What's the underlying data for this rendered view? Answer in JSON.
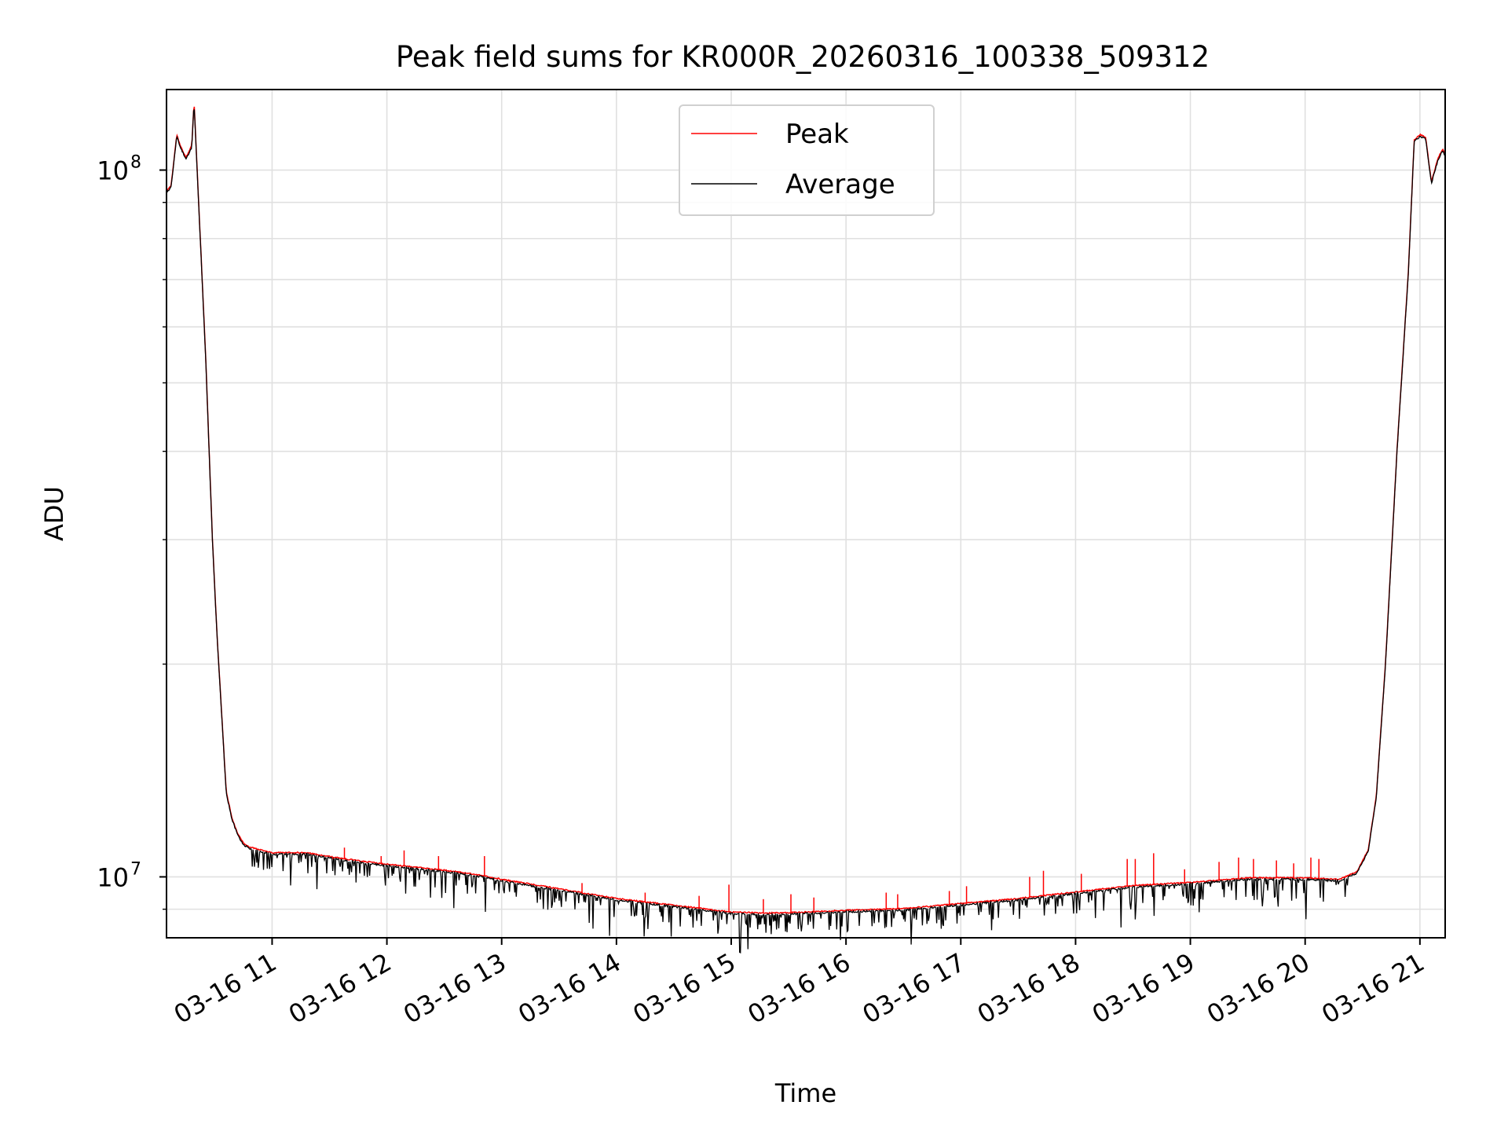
{
  "chart_data": {
    "type": "line",
    "title": "Peak field sums for KR000R_20260316_100338_509312",
    "xlabel": "Time",
    "ylabel": "ADU",
    "yscale": "log",
    "ylim": [
      8200000,
      130000000
    ],
    "xlim": [
      10.08,
      21.22
    ],
    "grid": true,
    "legend_position": "top-center",
    "x_ticks": [
      {
        "value": 11,
        "label": "03-16 11"
      },
      {
        "value": 12,
        "label": "03-16 12"
      },
      {
        "value": 13,
        "label": "03-16 13"
      },
      {
        "value": 14,
        "label": "03-16 14"
      },
      {
        "value": 15,
        "label": "03-16 15"
      },
      {
        "value": 16,
        "label": "03-16 16"
      },
      {
        "value": 17,
        "label": "03-16 17"
      },
      {
        "value": 18,
        "label": "03-16 18"
      },
      {
        "value": 19,
        "label": "03-16 19"
      },
      {
        "value": 20,
        "label": "03-16 20"
      },
      {
        "value": 21,
        "label": "03-16 21"
      }
    ],
    "y_ticks": [
      {
        "value": 10000000,
        "base": "10",
        "exp": "7"
      },
      {
        "value": 100000000,
        "base": "10",
        "exp": "8"
      }
    ],
    "baseline": {
      "x": [
        10.08,
        10.12,
        10.17,
        10.2,
        10.25,
        10.3,
        10.32,
        10.36,
        10.42,
        10.48,
        10.52,
        10.57,
        10.6,
        10.65,
        10.7,
        10.75,
        10.8,
        10.9,
        11.0,
        11.3,
        11.6,
        12.0,
        12.5,
        12.8,
        13.0,
        13.5,
        14.0,
        14.5,
        15.0,
        15.3,
        15.5,
        16.0,
        16.5,
        17.0,
        17.5,
        18.0,
        18.5,
        19.0,
        19.5,
        20.0,
        20.3,
        20.45,
        20.55,
        20.62,
        20.7,
        20.8,
        20.9,
        20.95,
        21.0,
        21.05,
        21.1,
        21.13,
        21.16,
        21.2,
        21.22
      ],
      "y": [
        93000000,
        95000000,
        112000000,
        108000000,
        104000000,
        108000000,
        125000000,
        90000000,
        55000000,
        30000000,
        22000000,
        16000000,
        13200000,
        12100000,
        11500000,
        11150000,
        11000000,
        10900000,
        10800000,
        10800000,
        10600000,
        10400000,
        10200000,
        10050000,
        9900000,
        9600000,
        9300000,
        9100000,
        8900000,
        8870000,
        8880000,
        8950000,
        9000000,
        9150000,
        9300000,
        9500000,
        9700000,
        9800000,
        9950000,
        9950000,
        9900000,
        10150000,
        10900000,
        13000000,
        20000000,
        40000000,
        72000000,
        110000000,
        112000000,
        111000000,
        96000000,
        100000000,
        104000000,
        107000000,
        105000000
      ]
    },
    "series": [
      {
        "name": "Peak",
        "color": "#ff0000",
        "spike_x": [
          11.53,
          11.63,
          11.95,
          12.15,
          12.45,
          12.85,
          13.7,
          14.25,
          14.72,
          14.98,
          15.28,
          15.52,
          15.72,
          16.35,
          16.45,
          16.9,
          17.05,
          17.6,
          17.72,
          18.05,
          18.45,
          18.52,
          18.68,
          18.95,
          19.25,
          19.42,
          19.55,
          19.75,
          19.9,
          20.05,
          20.12
        ],
        "spike_y": [
          10600000,
          11000000,
          10700000,
          10900000,
          10700000,
          10700000,
          9800000,
          9500000,
          9400000,
          9750000,
          9300000,
          9450000,
          9350000,
          9500000,
          9450000,
          9550000,
          9700000,
          10000000,
          10200000,
          10100000,
          10600000,
          10600000,
          10800000,
          10250000,
          10500000,
          10650000,
          10600000,
          10550000,
          10450000,
          10650000,
          10600000
        ]
      },
      {
        "name": "Average",
        "color": "#000000"
      }
    ]
  }
}
